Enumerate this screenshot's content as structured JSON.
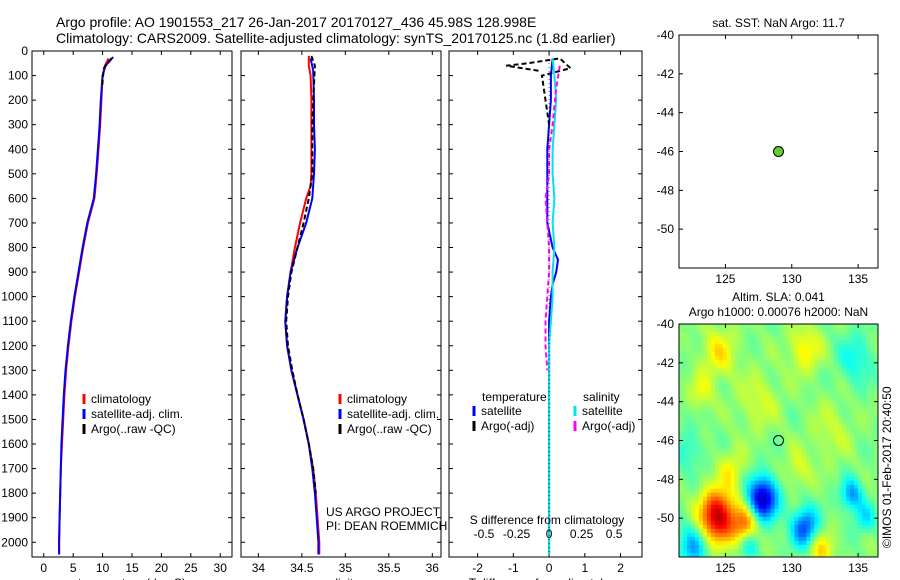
{
  "header": {
    "line1": "Argo profile: AO 1901553_217 26-Jan-2017 20170127_436 45.98S 128.998E",
    "line2": "Climatology: CARS2009. Satellite-adjusted climatology: synTS_20170125.nc (1.8d earlier)"
  },
  "colors": {
    "climatology": "#ff0000",
    "satellite": "#0000ff",
    "argo": "#000000",
    "sal_satellite": "#00e5e5",
    "sal_argo": "#ff00ff",
    "argo_marker": "#66cc33"
  },
  "watermark": "©IMOS 01-Feb-2017 20:40:50",
  "chart_data": [
    {
      "id": "temperature",
      "type": "line",
      "xlabel": "temperature (deg C)",
      "xlim": [
        -2,
        32
      ],
      "xticks": [
        0,
        5,
        10,
        15,
        20,
        25,
        30
      ],
      "ylim": [
        2060,
        0
      ],
      "yticks": [
        0,
        100,
        200,
        300,
        400,
        500,
        600,
        700,
        800,
        900,
        1000,
        1100,
        1200,
        1300,
        1400,
        1500,
        1600,
        1700,
        1800,
        1900,
        2000
      ],
      "legend": [
        "climatology",
        "satellite-adj. clim.",
        "Argo(..raw -QC)"
      ],
      "series": [
        {
          "name": "climatology",
          "color_key": "climatology",
          "points": [
            [
              11,
              30
            ],
            [
              10.4,
              60
            ],
            [
              10,
              100
            ],
            [
              9.8,
              200
            ],
            [
              9.6,
              300
            ],
            [
              9.3,
              400
            ],
            [
              9,
              500
            ],
            [
              8.6,
              600
            ],
            [
              7.5,
              700
            ],
            [
              6.7,
              800
            ],
            [
              6,
              900
            ],
            [
              5.3,
              1000
            ],
            [
              4.7,
              1100
            ],
            [
              4.2,
              1200
            ],
            [
              3.8,
              1300
            ],
            [
              3.5,
              1400
            ],
            [
              3.3,
              1500
            ],
            [
              3.1,
              1600
            ],
            [
              2.9,
              1700
            ],
            [
              2.8,
              1800
            ],
            [
              2.7,
              1900
            ],
            [
              2.6,
              2000
            ],
            [
              2.6,
              2050
            ]
          ]
        },
        {
          "name": "satellite-adj. clim.",
          "color_key": "satellite",
          "points": [
            [
              11.8,
              25
            ],
            [
              10.5,
              60
            ],
            [
              10,
              100
            ],
            [
              9.7,
              200
            ],
            [
              9.5,
              300
            ],
            [
              9.2,
              400
            ],
            [
              8.9,
              500
            ],
            [
              8.5,
              600
            ],
            [
              7.4,
              700
            ],
            [
              6.6,
              800
            ],
            [
              5.9,
              900
            ],
            [
              5.2,
              1000
            ],
            [
              4.6,
              1100
            ],
            [
              4.1,
              1200
            ],
            [
              3.7,
              1300
            ],
            [
              3.4,
              1400
            ],
            [
              3.2,
              1500
            ],
            [
              3.0,
              1600
            ],
            [
              2.9,
              1700
            ],
            [
              2.8,
              1800
            ],
            [
              2.7,
              1900
            ],
            [
              2.6,
              2000
            ],
            [
              2.6,
              2050
            ]
          ]
        },
        {
          "name": "Argo(..raw -QC)",
          "color_key": "argo",
          "dashed": true,
          "points": [
            [
              11.5,
              30
            ],
            [
              10.2,
              70
            ],
            [
              9.9,
              150
            ]
          ]
        }
      ]
    },
    {
      "id": "salinity",
      "type": "line",
      "xlabel": "salinity",
      "xlim": [
        33.8,
        36.1
      ],
      "xticks": [
        34,
        34.5,
        35,
        35.5,
        36
      ],
      "ylim": [
        2060,
        0
      ],
      "legend": [
        "climatology",
        "satellite-adj. clim.",
        "Argo(..raw -QC)"
      ],
      "annotation": [
        "US ARGO PROJECT",
        "PI: DEAN ROEMMICH"
      ],
      "series": [
        {
          "name": "climatology",
          "color_key": "climatology",
          "points": [
            [
              34.58,
              20
            ],
            [
              34.58,
              60
            ],
            [
              34.6,
              100
            ],
            [
              34.61,
              200
            ],
            [
              34.61,
              300
            ],
            [
              34.61,
              400
            ],
            [
              34.61,
              500
            ],
            [
              34.6,
              550
            ],
            [
              34.55,
              600
            ],
            [
              34.48,
              700
            ],
            [
              34.42,
              800
            ],
            [
              34.37,
              900
            ],
            [
              34.33,
              1000
            ],
            [
              34.31,
              1100
            ],
            [
              34.33,
              1200
            ],
            [
              34.38,
              1300
            ],
            [
              34.45,
              1400
            ],
            [
              34.52,
              1500
            ],
            [
              34.58,
              1600
            ],
            [
              34.63,
              1700
            ],
            [
              34.66,
              1800
            ],
            [
              34.68,
              1900
            ],
            [
              34.7,
              2000
            ],
            [
              34.7,
              2050
            ]
          ]
        },
        {
          "name": "satellite-adj. clim.",
          "color_key": "satellite",
          "points": [
            [
              34.6,
              30
            ],
            [
              34.63,
              80
            ],
            [
              34.64,
              200
            ],
            [
              34.64,
              300
            ],
            [
              34.65,
              400
            ],
            [
              34.64,
              500
            ],
            [
              34.62,
              600
            ],
            [
              34.55,
              700
            ],
            [
              34.45,
              800
            ],
            [
              34.37,
              900
            ],
            [
              34.33,
              1000
            ],
            [
              34.31,
              1100
            ],
            [
              34.33,
              1200
            ],
            [
              34.38,
              1300
            ],
            [
              34.45,
              1400
            ],
            [
              34.52,
              1500
            ],
            [
              34.58,
              1600
            ],
            [
              34.62,
              1700
            ],
            [
              34.65,
              1800
            ],
            [
              34.67,
              1900
            ],
            [
              34.69,
              2000
            ],
            [
              34.69,
              2050
            ]
          ]
        },
        {
          "name": "Argo(..raw -QC)",
          "color_key": "argo",
          "dashed": true,
          "points": [
            [
              34.61,
              20
            ],
            [
              34.65,
              60
            ],
            [
              34.63,
              200
            ],
            [
              34.62,
              300
            ],
            [
              34.62,
              400
            ],
            [
              34.62,
              500
            ],
            [
              34.58,
              600
            ],
            [
              34.52,
              700
            ],
            [
              34.45,
              800
            ],
            [
              34.38,
              900
            ],
            [
              34.34,
              1000
            ],
            [
              34.32,
              1100
            ],
            [
              34.34,
              1200
            ],
            [
              34.39,
              1300
            ],
            [
              34.45,
              1400
            ],
            [
              34.52,
              1500
            ],
            [
              34.58,
              1600
            ],
            [
              34.63,
              1700
            ],
            [
              34.66,
              1800
            ]
          ]
        }
      ]
    },
    {
      "id": "difference",
      "type": "line",
      "xlabel": "T difference from climatology",
      "xlim": [
        -2.8,
        2.6
      ],
      "xticks": [
        -2,
        -1,
        0,
        1,
        2
      ],
      "top_label": "S difference from climatology",
      "top_ticks": [
        {
          "label": "-0.5",
          "x": -1.82
        },
        {
          "label": "-0.25",
          "x": -0.91
        },
        {
          "label": "0",
          "x": 0
        },
        {
          "label": "0.25",
          "x": 0.91
        },
        {
          "label": "0.5",
          "x": 1.82
        }
      ],
      "ylim": [
        2060,
        0
      ],
      "legend_titles": [
        "temperature",
        "salinity"
      ],
      "legend": [
        "satellite",
        "Argo(-adj)",
        "satellite",
        "Argo(-adj)"
      ],
      "series": [
        {
          "name": "temperature satellite",
          "color_key": "satellite",
          "points": [
            [
              0.1,
              30
            ],
            [
              0.05,
              100
            ],
            [
              0.05,
              200
            ],
            [
              0.0,
              300
            ],
            [
              -0.05,
              400
            ],
            [
              -0.05,
              500
            ],
            [
              -0.05,
              600
            ],
            [
              -0.05,
              700
            ],
            [
              0.1,
              800
            ],
            [
              0.25,
              850
            ],
            [
              0.2,
              900
            ],
            [
              0.1,
              950
            ],
            [
              0.05,
              1000
            ],
            [
              0.0,
              1100
            ],
            [
              0.0,
              1200
            ],
            [
              0.0,
              1400
            ],
            [
              0.0,
              1600
            ],
            [
              0.0,
              2050
            ]
          ]
        },
        {
          "name": "temperature Argo(-adj)",
          "color_key": "argo",
          "dashed": true,
          "points": [
            [
              -0.3,
              80
            ],
            [
              -1.2,
              60
            ],
            [
              -0.6,
              50
            ],
            [
              0.3,
              30
            ],
            [
              0.6,
              70
            ],
            [
              -0.2,
              100
            ],
            [
              -0.1,
              200
            ],
            [
              0.0,
              300
            ]
          ]
        },
        {
          "name": "salinity satellite",
          "color_key": "sal_satellite",
          "points": [
            [
              0.1,
              30
            ],
            [
              0.15,
              100
            ],
            [
              0.2,
              200
            ],
            [
              0.15,
              300
            ],
            [
              0.1,
              400
            ],
            [
              0.1,
              500
            ],
            [
              0.15,
              600
            ],
            [
              0.1,
              700
            ],
            [
              0.15,
              800
            ],
            [
              0.1,
              900
            ],
            [
              0.1,
              1000
            ],
            [
              0.05,
              1100
            ],
            [
              0.0,
              1200
            ],
            [
              0.0,
              1500
            ],
            [
              0.0,
              2050
            ]
          ]
        },
        {
          "name": "salinity Argo(-adj)",
          "color_key": "sal_argo",
          "dashed": true,
          "points": [
            [
              0.3,
              60
            ],
            [
              0.2,
              150
            ],
            [
              0.1,
              300
            ],
            [
              0.0,
              400
            ],
            [
              0.0,
              500
            ],
            [
              -0.1,
              600
            ],
            [
              -0.05,
              700
            ],
            [
              0.0,
              800
            ],
            [
              0.0,
              900
            ],
            [
              -0.05,
              1000
            ],
            [
              -0.1,
              1100
            ],
            [
              -0.1,
              1200
            ],
            [
              -0.05,
              1300
            ]
          ]
        }
      ]
    },
    {
      "id": "sst_map",
      "type": "scatter",
      "title": "sat. SST: NaN Argo: 11.7",
      "xlim": [
        121.5,
        136.5
      ],
      "ylim": [
        -52,
        -40
      ],
      "xticks": [
        125,
        130,
        135
      ],
      "yticks": [
        -40,
        -42,
        -44,
        -46,
        -48,
        -50
      ],
      "points": [
        [
          129,
          -46
        ]
      ]
    },
    {
      "id": "sla_map",
      "type": "heatmap",
      "title1": "Altim. SLA: 0.041",
      "title2": "Argo h1000: 0.00076 h2000: NaN",
      "xlim": [
        121.5,
        136.5
      ],
      "ylim": [
        -52,
        -40
      ],
      "xticks": [
        125,
        130,
        135
      ],
      "yticks": [
        -40,
        -42,
        -44,
        -46,
        -48,
        -50
      ],
      "argo_point": [
        129,
        -46
      ],
      "features": [
        {
          "lon": 124.4,
          "lat": -49.9,
          "val": 1.0,
          "r": 1.3
        },
        {
          "lon": 126.5,
          "lat": -50.4,
          "val": 0.6,
          "r": 1.0
        },
        {
          "lon": 125.5,
          "lat": -47.5,
          "val": 0.25,
          "r": 1.0
        },
        {
          "lon": 127.8,
          "lat": -49.0,
          "val": -1.0,
          "r": 1.1
        },
        {
          "lon": 131.0,
          "lat": -50.5,
          "val": -0.7,
          "r": 1.0
        },
        {
          "lon": 134.5,
          "lat": -48.8,
          "val": -0.5,
          "r": 0.8
        },
        {
          "lon": 122.5,
          "lat": -51.5,
          "val": -0.45,
          "r": 1.1
        },
        {
          "lon": 126.8,
          "lat": -51.3,
          "val": -0.35,
          "r": 0.8
        },
        {
          "lon": 132.2,
          "lat": -51.6,
          "val": 0.35,
          "r": 1.0
        },
        {
          "lon": 124.5,
          "lat": -41.5,
          "val": 0.3,
          "r": 1.3
        },
        {
          "lon": 131.0,
          "lat": -41.3,
          "val": 0.3,
          "r": 1.2
        },
        {
          "lon": 134.8,
          "lat": -41.8,
          "val": -0.25,
          "r": 1.3
        },
        {
          "lon": 127.5,
          "lat": -44.0,
          "val": 0.18,
          "r": 1.5
        },
        {
          "lon": 133.0,
          "lat": -45.5,
          "val": 0.15,
          "r": 1.5
        },
        {
          "lon": 122.2,
          "lat": -46.5,
          "val": -0.2,
          "r": 1.0
        },
        {
          "lon": 130.5,
          "lat": -47.5,
          "val": 0.2,
          "r": 1.0
        },
        {
          "lon": 135.5,
          "lat": -50.0,
          "val": -0.3,
          "r": 0.8
        },
        {
          "lon": 123.2,
          "lat": -43.5,
          "val": 0.22,
          "r": 0.9
        }
      ]
    }
  ]
}
